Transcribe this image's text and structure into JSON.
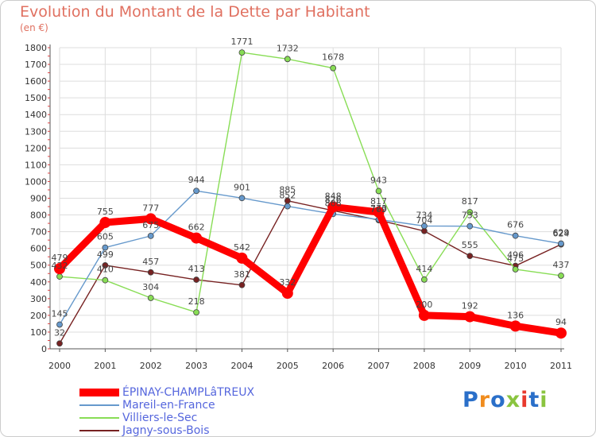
{
  "title": "Evolution du Montant de la Dette par Habitant",
  "subtitle": "(en €)",
  "logo": {
    "text": "Proxiti",
    "colors": [
      "#2a6fc9",
      "#f08c1e",
      "#2a6fc9",
      "#8ac43f",
      "#e8392e",
      "#2a6fc9",
      "#8ac43f"
    ]
  },
  "chart_data": {
    "type": "line",
    "x": [
      "2000",
      "2001",
      "2002",
      "2003",
      "2004",
      "2005",
      "2006",
      "2007",
      "2008",
      "2009",
      "2010",
      "2011"
    ],
    "ylim": [
      0,
      1800
    ],
    "yticks": [
      0,
      100,
      200,
      300,
      400,
      500,
      600,
      700,
      800,
      900,
      1000,
      1100,
      1200,
      1300,
      1400,
      1500,
      1600,
      1700,
      1800
    ],
    "grid": true,
    "legend_position": "bottom-left",
    "series": [
      {
        "name": "ÉPINAY-CHAMPLâTREUX",
        "color": "#ff0000",
        "values": [
          479,
          755,
          777,
          662,
          542,
          332,
          848,
          817,
          200,
          192,
          136,
          94
        ]
      },
      {
        "name": "Mareil-en-France",
        "color": "#6699cc",
        "values": [
          145,
          605,
          675,
          944,
          901,
          852,
          806,
          773,
          734,
          733,
          676,
          629
        ]
      },
      {
        "name": "Villiers-le-Sec",
        "color": "#88dd55",
        "values": [
          432,
          410,
          304,
          218,
          1771,
          1732,
          1678,
          943,
          414,
          817,
          475,
          437
        ]
      },
      {
        "name": "Jagny-sous-Bois",
        "color": "#772222",
        "values": [
          32,
          499,
          457,
          413,
          381,
          885,
          826,
          769,
          704,
          555,
          496,
          624
        ]
      }
    ]
  }
}
